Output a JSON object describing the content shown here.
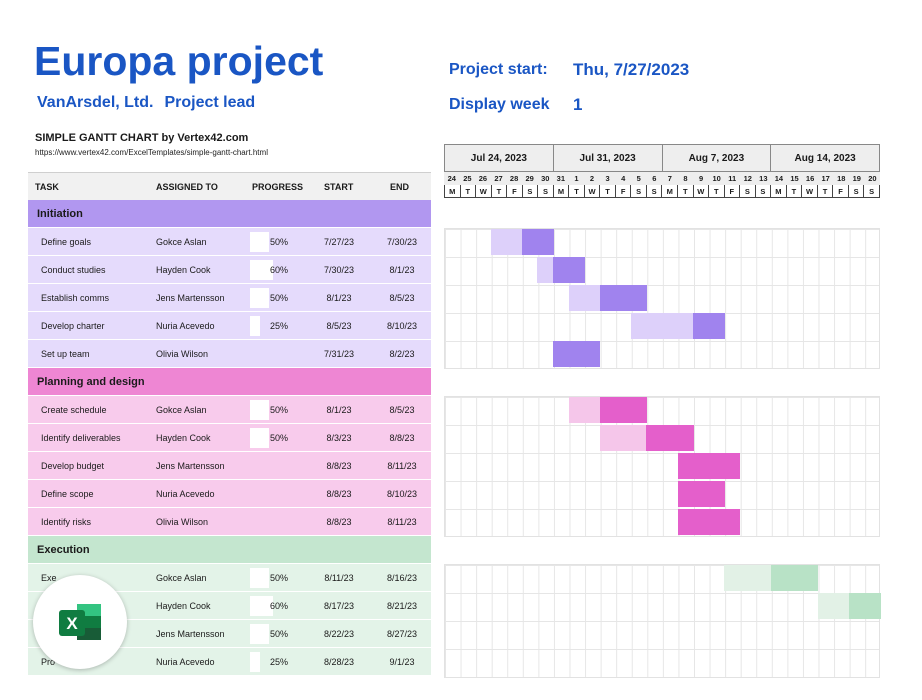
{
  "header": {
    "title": "Europa project",
    "company": "VanArsdel, Ltd.",
    "lead_label": "Project lead",
    "start_label": "Project start:",
    "start_value": "Thu, 7/27/2023",
    "week_label": "Display week",
    "week_value": "1",
    "chart_title": "SIMPLE GANTT CHART by Vertex42.com",
    "chart_url": "https://www.vertex42.com/ExcelTemplates/simple-gantt-chart.html"
  },
  "table_headers": {
    "task": "TASK",
    "assigned": "ASSIGNED TO",
    "progress": "PROGRESS",
    "start": "START",
    "end": "END"
  },
  "weeks": [
    "Jul 24, 2023",
    "Jul 31, 2023",
    "Aug 7, 2023",
    "Aug 14, 2023"
  ],
  "days": [
    "24",
    "25",
    "26",
    "27",
    "28",
    "29",
    "30",
    "31",
    "1",
    "2",
    "3",
    "4",
    "5",
    "6",
    "7",
    "8",
    "9",
    "10",
    "11",
    "12",
    "13",
    "14",
    "15",
    "16",
    "17",
    "18",
    "19",
    "20"
  ],
  "dow": [
    "M",
    "T",
    "W",
    "T",
    "F",
    "S",
    "S"
  ],
  "phases": [
    {
      "name": "Initiation",
      "tasks": [
        {
          "task": "Define goals",
          "assigned": "Gokce Aslan",
          "progress": "50%",
          "progress_frac": 0.5,
          "start": "7/27/23",
          "end": "7/30/23",
          "start_day": 3,
          "days": 4
        },
        {
          "task": "Conduct studies",
          "assigned": "Hayden Cook",
          "progress": "60%",
          "progress_frac": 0.6,
          "start": "7/30/23",
          "end": "8/1/23",
          "start_day": 6,
          "days": 3
        },
        {
          "task": "Establish comms",
          "assigned": "Jens Martensson",
          "progress": "50%",
          "progress_frac": 0.5,
          "start": "8/1/23",
          "end": "8/5/23",
          "start_day": 8,
          "days": 5
        },
        {
          "task": "Develop charter",
          "assigned": "Nuria Acevedo",
          "progress": "25%",
          "progress_frac": 0.25,
          "start": "8/5/23",
          "end": "8/10/23",
          "start_day": 12,
          "days": 6
        },
        {
          "task": "Set up team",
          "assigned": "Olivia Wilson",
          "progress": "",
          "progress_frac": 0,
          "start": "7/31/23",
          "end": "8/2/23",
          "start_day": 7,
          "days": 3
        }
      ]
    },
    {
      "name": "Planning and design",
      "tasks": [
        {
          "task": "Create schedule",
          "assigned": "Gokce Aslan",
          "progress": "50%",
          "progress_frac": 0.5,
          "start": "8/1/23",
          "end": "8/5/23",
          "start_day": 8,
          "days": 5
        },
        {
          "task": "Identify deliverables",
          "assigned": "Hayden Cook",
          "progress": "50%",
          "progress_frac": 0.5,
          "start": "8/3/23",
          "end": "8/8/23",
          "start_day": 10,
          "days": 6
        },
        {
          "task": "Develop budget",
          "assigned": "Jens Martensson",
          "progress": "",
          "progress_frac": 0,
          "start": "8/8/23",
          "end": "8/11/23",
          "start_day": 15,
          "days": 4
        },
        {
          "task": "Define scope",
          "assigned": "Nuria Acevedo",
          "progress": "",
          "progress_frac": 0,
          "start": "8/8/23",
          "end": "8/10/23",
          "start_day": 15,
          "days": 3
        },
        {
          "task": "Identify risks",
          "assigned": "Olivia Wilson",
          "progress": "",
          "progress_frac": 0,
          "start": "8/8/23",
          "end": "8/11/23",
          "start_day": 15,
          "days": 4
        }
      ]
    },
    {
      "name": "Execution",
      "tasks": [
        {
          "task": "Exe",
          "assigned": "Gokce Aslan",
          "progress": "50%",
          "progress_frac": 0.5,
          "start": "8/11/23",
          "end": "8/16/23",
          "start_day": 18,
          "days": 6
        },
        {
          "task": "",
          "assigned": "Hayden Cook",
          "progress": "60%",
          "progress_frac": 0.6,
          "start": "8/17/23",
          "end": "8/21/23",
          "start_day": 24,
          "days": 5
        },
        {
          "task": "",
          "assigned": "Jens Martensson",
          "progress": "50%",
          "progress_frac": 0.5,
          "start": "8/22/23",
          "end": "8/27/23",
          "start_day": 29,
          "days": 6
        },
        {
          "task": "Pro",
          "assigned": "Nuria Acevedo",
          "progress": "25%",
          "progress_frac": 0.25,
          "start": "8/28/23",
          "end": "9/1/23",
          "start_day": 35,
          "days": 5
        }
      ]
    }
  ],
  "colors": {
    "title_blue": "#1a56c4",
    "phase": [
      "#b197f0",
      "#ee86d3",
      "#c4e6cf"
    ],
    "task_bg": [
      "#e5dbfc",
      "#f8cbec",
      "#e3f3e8"
    ],
    "bar_done": [
      "#a083ee",
      "#e45fcb",
      "#b8e2c6"
    ],
    "bar_todo": [
      "#ddd0fa",
      "#f5c6ea",
      "#e2f1e6"
    ],
    "excel_green": "#107c41"
  },
  "app_icon": "excel-logo-icon"
}
